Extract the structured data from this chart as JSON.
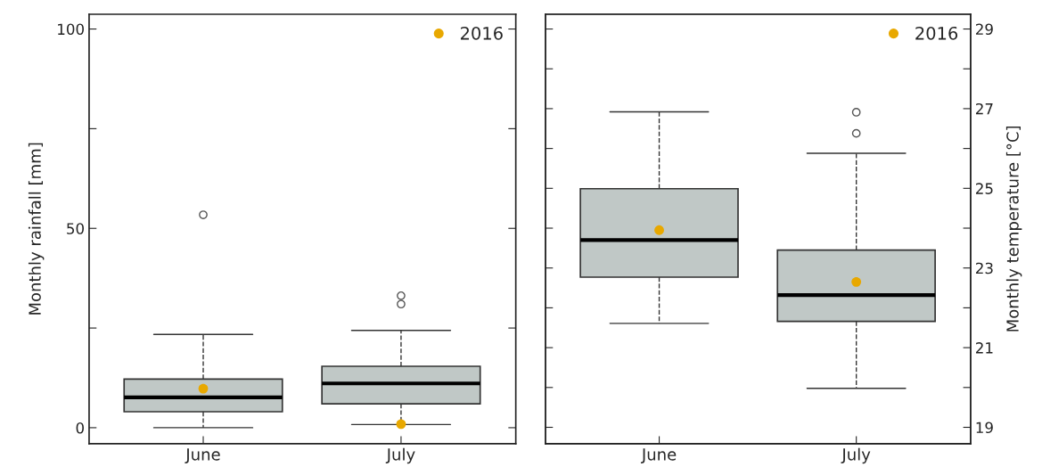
{
  "chart_data": [
    {
      "type": "box",
      "ylabel": "Monthly rainfall [mm]",
      "categories": [
        "June",
        "July"
      ],
      "ylim": [
        -4,
        103.7
      ],
      "yticks": [
        0,
        {
          "value": 25,
          "label": null
        },
        50,
        {
          "value": 75,
          "label": null
        },
        100
      ],
      "grid": false,
      "legend": "top right",
      "marker": "circle",
      "series": [
        {
          "type": "box",
          "color": "#c0c8c6",
          "boxes": [
            {
              "low": 0,
              "q1": 4.0,
              "median": 7.6,
              "q3": 12.2,
              "high": 23.4,
              "outliers": [
                53.4
              ]
            },
            {
              "low": 0.8,
              "q1": 6.0,
              "median": 11.1,
              "q3": 15.4,
              "high": 24.4,
              "outliers": [
                31.0,
                33.1
              ]
            }
          ]
        },
        {
          "type": "scatter",
          "name": "2016",
          "color": "#e8a800",
          "x": [
            "June",
            "July"
          ],
          "values": [
            9.8,
            0.9
          ]
        }
      ]
    },
    {
      "type": "box",
      "y2label": "Monthly temperature [°C]",
      "categories": [
        "June",
        "July"
      ],
      "y2lim": [
        18.59,
        29.37
      ],
      "y2ticks": [
        19,
        {
          "value": 20,
          "label": null
        },
        21,
        {
          "value": 22,
          "label": null
        },
        23,
        {
          "value": 24,
          "label": null
        },
        25,
        {
          "value": 26,
          "label": null
        },
        27,
        {
          "value": 28,
          "label": null
        },
        29
      ],
      "grid": false,
      "legend": "top right",
      "marker": "circle",
      "series": [
        {
          "type": "box",
          "axis": "y2",
          "color": "#c0c8c6",
          "boxes": [
            {
              "low": 21.61,
              "q1": 22.77,
              "median": 23.7,
              "q3": 24.99,
              "high": 26.92
            },
            {
              "low": 19.98,
              "q1": 21.66,
              "median": 22.32,
              "q3": 23.45,
              "high": 25.88,
              "outliers": [
                26.38,
                26.91
              ]
            }
          ]
        },
        {
          "type": "scatter",
          "axis": "y2",
          "name": "2016",
          "color": "#e8a800",
          "x": [
            "June",
            "July"
          ],
          "values": [
            23.95,
            22.65
          ]
        }
      ]
    }
  ]
}
